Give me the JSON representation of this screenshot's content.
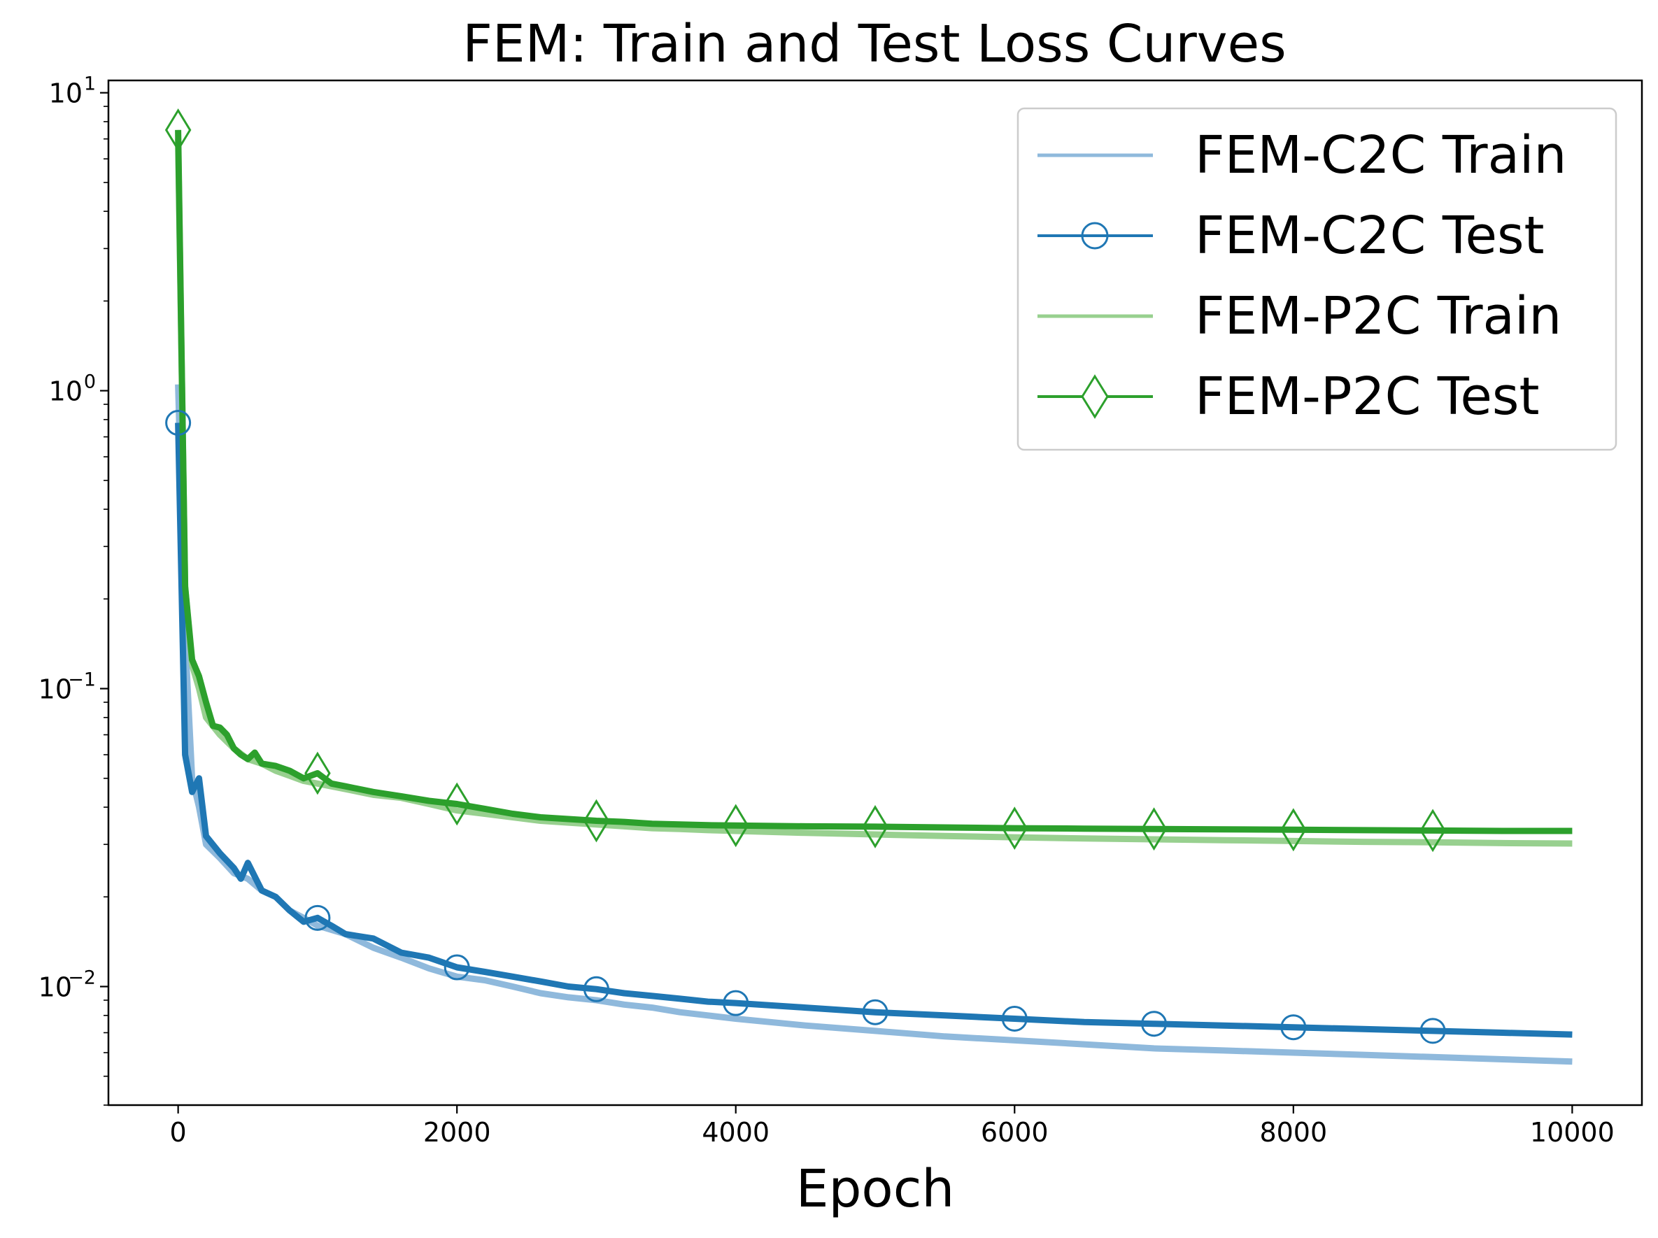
{
  "chart_data": {
    "type": "line",
    "title": "FEM: Train and Test Loss Curves",
    "xlabel": "Epoch",
    "ylabel": "",
    "yscale": "log",
    "xlim": [
      -500,
      10500
    ],
    "ylim": [
      0.004,
      11
    ],
    "xticks": [
      {
        "value": 0,
        "label": "0"
      },
      {
        "value": 2000,
        "label": "2000"
      },
      {
        "value": 4000,
        "label": "4000"
      },
      {
        "value": 6000,
        "label": "6000"
      },
      {
        "value": 8000,
        "label": "8000"
      },
      {
        "value": 10000,
        "label": "10000"
      }
    ],
    "yticks": [
      {
        "value": 10,
        "base": "10",
        "exp": "1"
      },
      {
        "value": 1,
        "base": "10",
        "exp": "0"
      },
      {
        "value": 0.1,
        "base": "10",
        "exp": "−1"
      },
      {
        "value": 0.01,
        "base": "10",
        "exp": "−2"
      }
    ],
    "legend_position": "top-right",
    "series": [
      {
        "name": "FEM-C2C Train",
        "color": "#8fb9dc",
        "marker": "none",
        "x": [
          0,
          50,
          100,
          150,
          200,
          300,
          400,
          500,
          600,
          700,
          800,
          900,
          1000,
          1200,
          1400,
          1600,
          1800,
          2000,
          2200,
          2400,
          2600,
          2800,
          3000,
          3200,
          3400,
          3600,
          3800,
          4000,
          4500,
          5000,
          5500,
          6000,
          6500,
          7000,
          7500,
          8000,
          8500,
          9000,
          9500,
          10000
        ],
        "values": [
          1.05,
          0.15,
          0.05,
          0.04,
          0.03,
          0.027,
          0.024,
          0.023,
          0.021,
          0.02,
          0.018,
          0.017,
          0.016,
          0.015,
          0.0135,
          0.0125,
          0.0115,
          0.0108,
          0.0105,
          0.01,
          0.0095,
          0.0092,
          0.009,
          0.0087,
          0.0085,
          0.0082,
          0.008,
          0.0078,
          0.0074,
          0.0071,
          0.0068,
          0.0066,
          0.0064,
          0.0062,
          0.0061,
          0.006,
          0.0059,
          0.0058,
          0.0057,
          0.0056
        ]
      },
      {
        "name": "FEM-C2C Test",
        "color": "#1f77b4",
        "marker": "circle",
        "marker_x": [
          0,
          1000,
          2000,
          3000,
          4000,
          5000,
          6000,
          7000,
          8000,
          9000
        ],
        "x": [
          0,
          50,
          100,
          150,
          200,
          300,
          400,
          450,
          500,
          600,
          700,
          800,
          900,
          1000,
          1100,
          1200,
          1400,
          1600,
          1800,
          2000,
          2200,
          2400,
          2600,
          2800,
          3000,
          3200,
          3400,
          3600,
          3800,
          4000,
          4500,
          5000,
          5500,
          6000,
          6500,
          7000,
          7500,
          8000,
          8500,
          9000,
          9500,
          10000
        ],
        "values": [
          0.78,
          0.06,
          0.045,
          0.05,
          0.032,
          0.028,
          0.025,
          0.023,
          0.026,
          0.021,
          0.02,
          0.018,
          0.0165,
          0.017,
          0.016,
          0.015,
          0.0145,
          0.013,
          0.0125,
          0.0116,
          0.0112,
          0.0108,
          0.0104,
          0.01,
          0.0098,
          0.0095,
          0.0093,
          0.0091,
          0.0089,
          0.0088,
          0.0085,
          0.0082,
          0.008,
          0.0078,
          0.0076,
          0.0075,
          0.0074,
          0.0073,
          0.0072,
          0.0071,
          0.007,
          0.0069
        ]
      },
      {
        "name": "FEM-P2C Train",
        "color": "#98d08f",
        "marker": "none",
        "x": [
          0,
          50,
          100,
          150,
          200,
          300,
          400,
          500,
          600,
          700,
          800,
          900,
          1000,
          1200,
          1400,
          1600,
          1800,
          2000,
          2200,
          2400,
          2600,
          2800,
          3000,
          3200,
          3400,
          3600,
          3800,
          4000,
          4500,
          5000,
          5500,
          6000,
          6500,
          7000,
          7500,
          8000,
          8500,
          9000,
          9500,
          10000
        ],
        "values": [
          7.0,
          0.22,
          0.12,
          0.1,
          0.08,
          0.07,
          0.063,
          0.058,
          0.056,
          0.053,
          0.051,
          0.049,
          0.048,
          0.046,
          0.044,
          0.043,
          0.041,
          0.039,
          0.038,
          0.037,
          0.036,
          0.0355,
          0.035,
          0.0345,
          0.034,
          0.0338,
          0.0335,
          0.0333,
          0.0328,
          0.0324,
          0.032,
          0.0317,
          0.0314,
          0.0312,
          0.031,
          0.0308,
          0.0306,
          0.0305,
          0.0303,
          0.0302
        ]
      },
      {
        "name": "FEM-P2C Test",
        "color": "#2ca02c",
        "marker": "diamond",
        "marker_x": [
          0,
          1000,
          2000,
          3000,
          4000,
          5000,
          6000,
          7000,
          8000,
          9000
        ],
        "x": [
          0,
          50,
          100,
          150,
          200,
          250,
          300,
          350,
          400,
          450,
          500,
          550,
          600,
          700,
          800,
          900,
          1000,
          1100,
          1200,
          1400,
          1600,
          1800,
          2000,
          2200,
          2400,
          2600,
          2800,
          3000,
          3200,
          3400,
          3600,
          3800,
          4000,
          4500,
          5000,
          5500,
          6000,
          6500,
          7000,
          7500,
          8000,
          8500,
          9000,
          9500,
          10000
        ],
        "values": [
          7.5,
          0.22,
          0.125,
          0.11,
          0.09,
          0.075,
          0.074,
          0.07,
          0.063,
          0.06,
          0.058,
          0.061,
          0.056,
          0.055,
          0.053,
          0.05,
          0.052,
          0.048,
          0.047,
          0.045,
          0.0435,
          0.042,
          0.041,
          0.0395,
          0.038,
          0.037,
          0.0365,
          0.036,
          0.0357,
          0.0352,
          0.035,
          0.0348,
          0.0347,
          0.0345,
          0.0344,
          0.0342,
          0.034,
          0.0339,
          0.0338,
          0.0337,
          0.0336,
          0.0335,
          0.0334,
          0.0333,
          0.0333
        ]
      }
    ]
  }
}
